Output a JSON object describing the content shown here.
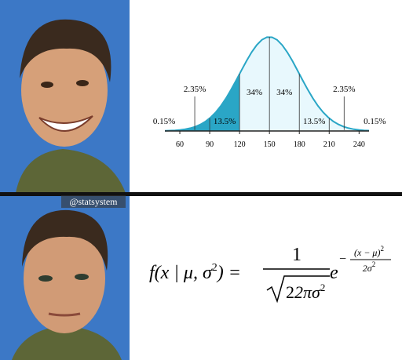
{
  "watermark": "@statsystem",
  "chart_data": {
    "type": "normal",
    "xlim": [
      45,
      250
    ],
    "xticks": [
      60,
      90,
      120,
      150,
      180,
      210,
      240
    ],
    "values": [
      0.15,
      2.35,
      13.5,
      34,
      34,
      13.5,
      2.35,
      0.15
    ],
    "value_labels": [
      "0.15%",
      "2.35%",
      "13.5%",
      "34%",
      "34%",
      "13.5%",
      "2.35%",
      "0.15%"
    ],
    "colors": [
      "#ffffff",
      "#2aa6c6",
      "#2aa6c6",
      "#e8f8fd",
      "#e8f8fd",
      "#e8f8fd",
      "#e8f8fd",
      "#ffffff"
    ],
    "line_color": "#2aa6c6"
  },
  "formula": {
    "lhs": "f(x | μ, σ",
    "lhs_sup": "2",
    "lhs_end": ") =",
    "numerator": "1",
    "denominator": "2πσ",
    "denominator_sup": "2",
    "base": "e",
    "exp_sign": "−",
    "exp_numerator": "(x − μ)",
    "exp_numerator_sup": "2",
    "exp_denominator": "2σ",
    "exp_denominator_sup": "2"
  }
}
